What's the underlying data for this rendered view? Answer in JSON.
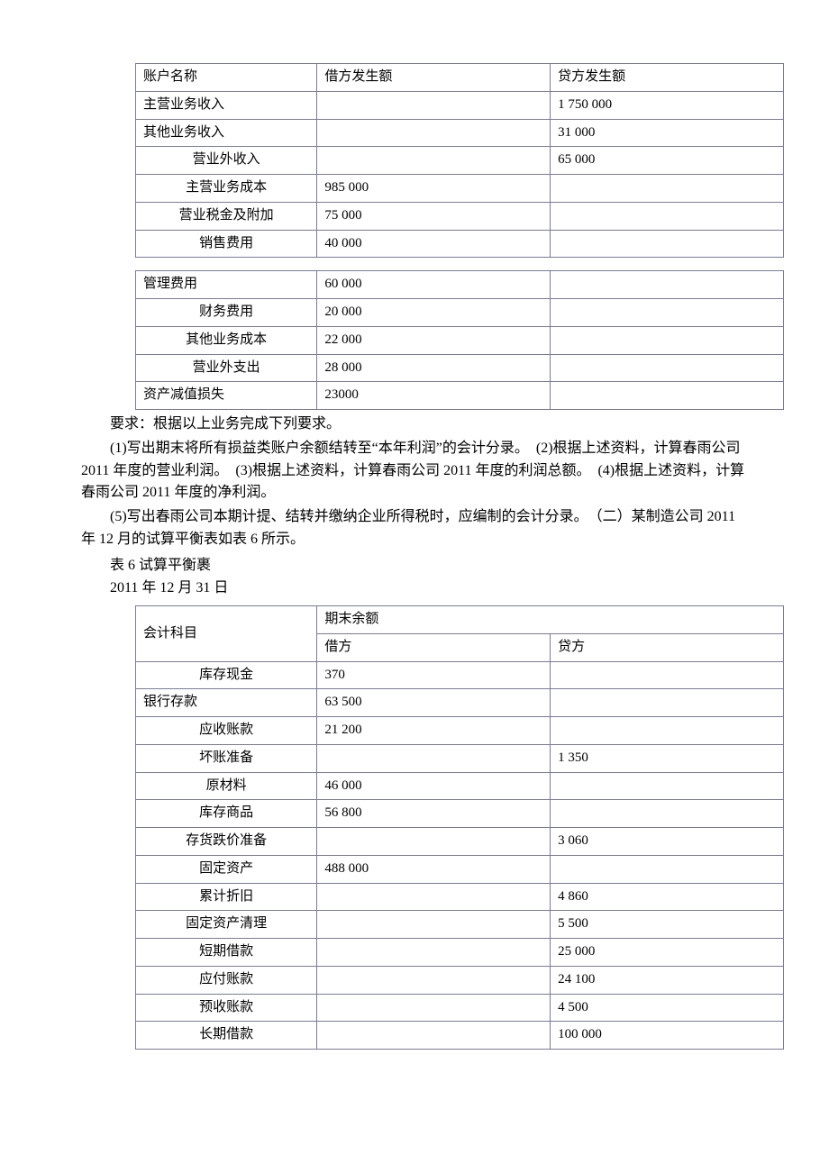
{
  "colors": {
    "border": "#7a7a9a",
    "text": "#000000",
    "bg": "#ffffff"
  },
  "typography": {
    "font_family": "SimSun",
    "base_size_pt": 12
  },
  "table1a": {
    "header": {
      "c0": "账户名称",
      "c1": "借方发生额",
      "c2": "贷方发生额"
    },
    "rows": [
      {
        "c0": "主营业务收入",
        "c1": "",
        "c2": "1 750 000",
        "align0": "left"
      },
      {
        "c0": "其他业务收入",
        "c1": "",
        "c2": "31 000",
        "align0": "left"
      },
      {
        "c0": "营业外收入",
        "c1": "",
        "c2": "65 000",
        "align0": "center"
      },
      {
        "c0": "主营业务成本",
        "c1": "985 000",
        "c2": "",
        "align0": "center"
      },
      {
        "c0": "营业税金及附加",
        "c1": "75 000",
        "c2": "",
        "align0": "center"
      },
      {
        "c0": "销售费用",
        "c1": "40 000",
        "c2": "",
        "align0": "center"
      }
    ]
  },
  "table1b": {
    "rows": [
      {
        "c0": "管理费用",
        "c1": "60 000",
        "c2": "",
        "align0": "left"
      },
      {
        "c0": "财务费用",
        "c1": "20 000",
        "c2": "",
        "align0": "center"
      },
      {
        "c0": "其他业务成本",
        "c1": "  22 000",
        "c2": "",
        "align0": "center"
      },
      {
        "c0": "营业外支出",
        "c1": "28 000",
        "c2": "",
        "align0": "center"
      },
      {
        "c0": "资产减值损失",
        "c1": "23000",
        "c2": "",
        "align0": "left"
      }
    ]
  },
  "text": {
    "p_req": "要求：根据以上业务完成下列要求。",
    "p_items1": "(1)写出期末将所有损益类账户余额结转至“本年利润”的会计分录。　(2)根据上述资料，计算春雨公司 2011 年度的营业利润。　(3)根据上述资料，计算春雨公司 2011 年度的利润总额。　(4)根据上述资料，计算春雨公司 2011 年度的净利润。",
    "p_items2": "(5)写出春雨公司本期计提、结转并缴纳企业所得税时，应编制的会计分录。　（二）某制造公司 2011 年 12 月的试算平衡表如表 6 所示。",
    "cap": "表 6  试算平衡裹",
    "date": "2011 年 12 月 31 日"
  },
  "table2": {
    "header": {
      "c0": "会计科目",
      "c12": "期末余额",
      "c1": "借方",
      "c2": "贷方"
    },
    "rows": [
      {
        "c0": "库存现金",
        "c1": "370",
        "c2": ""
      },
      {
        "c0": "银行存款",
        "c1": "63 500",
        "c2": "",
        "align0": "left"
      },
      {
        "c0": "应收账款",
        "c1": "21 200",
        "c2": ""
      },
      {
        "c0": "坏账准备",
        "c1": "",
        "c2": " 1 350"
      },
      {
        "c0": "原材料",
        "c1": " 46 000",
        "c2": ""
      },
      {
        "c0": "库存商品",
        "c1": " 56 800",
        "c2": ""
      },
      {
        "c0": "存货跌价准备",
        "c1": "",
        "c2": "3 060"
      },
      {
        "c0": "固定资产",
        "c1": "488 000",
        "c2": ""
      },
      {
        "c0": "累计折旧",
        "c1": "",
        "c2": " 4 860"
      },
      {
        "c0": "固定资产清理",
        "c1": "",
        "c2": "5 500"
      },
      {
        "c0": "短期借款",
        "c1": "",
        "c2": "25 000"
      },
      {
        "c0": "应付账款",
        "c1": "",
        "c2": "24 100"
      },
      {
        "c0": "预收账款",
        "c1": "",
        "c2": "4 500"
      },
      {
        "c0": "长期借款",
        "c1": "",
        "c2": "100 000"
      }
    ]
  }
}
